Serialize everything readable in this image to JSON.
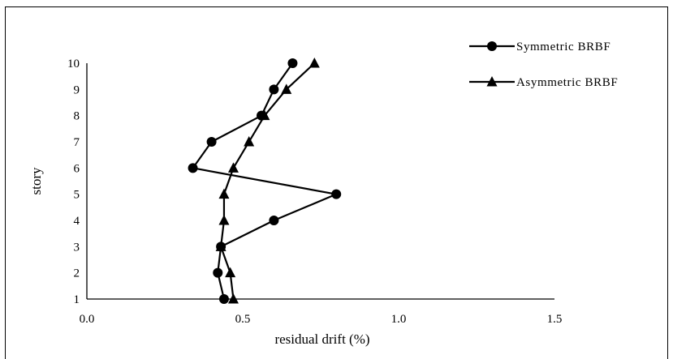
{
  "chart_data": {
    "type": "line",
    "xlabel": "residual drift (%)",
    "ylabel": "story",
    "xlim": [
      0,
      1.5
    ],
    "ylim": [
      1,
      10
    ],
    "xticks": [
      "0.0",
      "0.5",
      "1.0",
      "1.5"
    ],
    "yticks": [
      "1",
      "2",
      "3",
      "4",
      "5",
      "6",
      "7",
      "8",
      "9",
      "10"
    ],
    "legend_position": "top-right",
    "grid": false,
    "series": [
      {
        "name": "Symmetric BRBF",
        "marker": "circle",
        "color": "#000000",
        "x": [
          0.44,
          0.42,
          0.43,
          0.6,
          0.8,
          0.34,
          0.4,
          0.56,
          0.6,
          0.66
        ],
        "y": [
          1,
          2,
          3,
          4,
          5,
          6,
          7,
          8,
          9,
          10
        ]
      },
      {
        "name": "Asymmetric BRBF",
        "marker": "triangle",
        "color": "#000000",
        "x": [
          0.47,
          0.46,
          0.43,
          0.44,
          0.44,
          0.47,
          0.52,
          0.57,
          0.64,
          0.73
        ],
        "y": [
          1,
          2,
          3,
          4,
          5,
          6,
          7,
          8,
          9,
          10
        ]
      }
    ]
  }
}
